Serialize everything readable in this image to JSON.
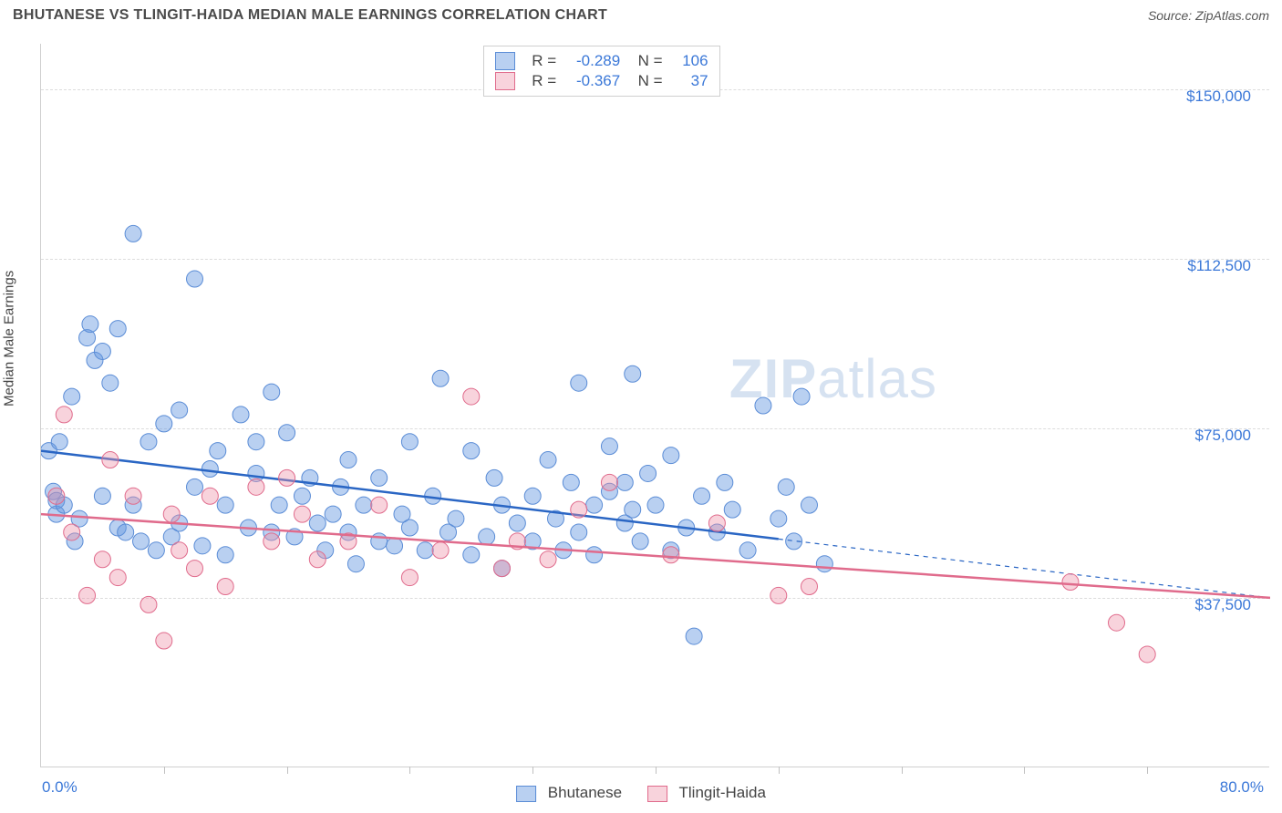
{
  "title": "BHUTANESE VS TLINGIT-HAIDA MEDIAN MALE EARNINGS CORRELATION CHART",
  "source_label": "Source: ZipAtlas.com",
  "ylabel": "Median Male Earnings",
  "xaxis": {
    "min_label": "0.0%",
    "max_label": "80.0%",
    "min": 0,
    "max": 80,
    "tick_interval_minor": 8,
    "tick_count": 10
  },
  "yaxis": {
    "min": 0,
    "max": 160000,
    "gridlines": [
      {
        "value": 37500,
        "label": "$37,500"
      },
      {
        "value": 75000,
        "label": "$75,000"
      },
      {
        "value": 112500,
        "label": "$112,500"
      },
      {
        "value": 150000,
        "label": "$150,000"
      }
    ]
  },
  "series": [
    {
      "id": "bhutanese",
      "label": "Bhutanese",
      "color_fill": "rgba(99,151,225,0.45)",
      "color_stroke": "#5a8cd6",
      "line_color": "#2a66c4",
      "R": "-0.289",
      "N": "106",
      "trend": {
        "x1": 0,
        "y1": 70000,
        "x2_solid": 48,
        "y2_solid": 50500,
        "x2_dash": 80,
        "y2_dash": 37500
      },
      "points": [
        [
          0.5,
          70000
        ],
        [
          0.8,
          61000
        ],
        [
          1,
          56000
        ],
        [
          1,
          59000
        ],
        [
          1.2,
          72000
        ],
        [
          1.5,
          58000
        ],
        [
          2,
          82000
        ],
        [
          2.2,
          50000
        ],
        [
          2.5,
          55000
        ],
        [
          3,
          95000
        ],
        [
          3.2,
          98000
        ],
        [
          3.5,
          90000
        ],
        [
          4,
          92000
        ],
        [
          4,
          60000
        ],
        [
          4.5,
          85000
        ],
        [
          5,
          97000
        ],
        [
          5,
          53000
        ],
        [
          5.5,
          52000
        ],
        [
          6,
          118000
        ],
        [
          6,
          58000
        ],
        [
          6.5,
          50000
        ],
        [
          7,
          72000
        ],
        [
          7.5,
          48000
        ],
        [
          8,
          76000
        ],
        [
          8.5,
          51000
        ],
        [
          9,
          54000
        ],
        [
          9,
          79000
        ],
        [
          10,
          108000
        ],
        [
          10,
          62000
        ],
        [
          10.5,
          49000
        ],
        [
          11,
          66000
        ],
        [
          11.5,
          70000
        ],
        [
          12,
          47000
        ],
        [
          12,
          58000
        ],
        [
          13,
          78000
        ],
        [
          13.5,
          53000
        ],
        [
          14,
          65000
        ],
        [
          14,
          72000
        ],
        [
          15,
          83000
        ],
        [
          15,
          52000
        ],
        [
          15.5,
          58000
        ],
        [
          16,
          74000
        ],
        [
          16.5,
          51000
        ],
        [
          17,
          60000
        ],
        [
          17.5,
          64000
        ],
        [
          18,
          54000
        ],
        [
          18.5,
          48000
        ],
        [
          19,
          56000
        ],
        [
          19.5,
          62000
        ],
        [
          20,
          52000
        ],
        [
          20,
          68000
        ],
        [
          20.5,
          45000
        ],
        [
          21,
          58000
        ],
        [
          22,
          50000
        ],
        [
          22,
          64000
        ],
        [
          23,
          49000
        ],
        [
          23.5,
          56000
        ],
        [
          24,
          53000
        ],
        [
          24,
          72000
        ],
        [
          25,
          48000
        ],
        [
          25.5,
          60000
        ],
        [
          26,
          86000
        ],
        [
          26.5,
          52000
        ],
        [
          27,
          55000
        ],
        [
          28,
          70000
        ],
        [
          28,
          47000
        ],
        [
          29,
          51000
        ],
        [
          29.5,
          64000
        ],
        [
          30,
          58000
        ],
        [
          30,
          44000
        ],
        [
          31,
          54000
        ],
        [
          32,
          60000
        ],
        [
          32,
          50000
        ],
        [
          33,
          68000
        ],
        [
          33.5,
          55000
        ],
        [
          34,
          48000
        ],
        [
          34.5,
          63000
        ],
        [
          35,
          85000
        ],
        [
          35,
          52000
        ],
        [
          36,
          47000
        ],
        [
          36,
          58000
        ],
        [
          37,
          61000
        ],
        [
          37,
          71000
        ],
        [
          38,
          54000
        ],
        [
          38,
          63000
        ],
        [
          38.5,
          87000
        ],
        [
          38.5,
          57000
        ],
        [
          39,
          50000
        ],
        [
          39.5,
          65000
        ],
        [
          40,
          58000
        ],
        [
          41,
          48000
        ],
        [
          41,
          69000
        ],
        [
          42,
          53000
        ],
        [
          42.5,
          29000
        ],
        [
          43,
          60000
        ],
        [
          44,
          52000
        ],
        [
          44.5,
          63000
        ],
        [
          45,
          57000
        ],
        [
          46,
          48000
        ],
        [
          47,
          80000
        ],
        [
          48,
          55000
        ],
        [
          48.5,
          62000
        ],
        [
          49,
          50000
        ],
        [
          49.5,
          82000
        ],
        [
          50,
          58000
        ],
        [
          51,
          45000
        ]
      ]
    },
    {
      "id": "tlingit",
      "label": "Tlingit-Haida",
      "color_fill": "rgba(238,145,167,0.40)",
      "color_stroke": "#e06b8c",
      "line_color": "#e06b8c",
      "R": "-0.367",
      "N": "37",
      "trend": {
        "x1": 0,
        "y1": 56000,
        "x2_solid": 80,
        "y2_solid": 37500,
        "x2_dash": 80,
        "y2_dash": 37500
      },
      "points": [
        [
          1,
          60000
        ],
        [
          1.5,
          78000
        ],
        [
          2,
          52000
        ],
        [
          3,
          38000
        ],
        [
          4,
          46000
        ],
        [
          4.5,
          68000
        ],
        [
          5,
          42000
        ],
        [
          6,
          60000
        ],
        [
          7,
          36000
        ],
        [
          8,
          28000
        ],
        [
          8.5,
          56000
        ],
        [
          9,
          48000
        ],
        [
          10,
          44000
        ],
        [
          11,
          60000
        ],
        [
          12,
          40000
        ],
        [
          14,
          62000
        ],
        [
          15,
          50000
        ],
        [
          16,
          64000
        ],
        [
          17,
          56000
        ],
        [
          18,
          46000
        ],
        [
          20,
          50000
        ],
        [
          22,
          58000
        ],
        [
          24,
          42000
        ],
        [
          26,
          48000
        ],
        [
          28,
          82000
        ],
        [
          30,
          44000
        ],
        [
          31,
          50000
        ],
        [
          33,
          46000
        ],
        [
          35,
          57000
        ],
        [
          37,
          63000
        ],
        [
          41,
          47000
        ],
        [
          44,
          54000
        ],
        [
          48,
          38000
        ],
        [
          50,
          40000
        ],
        [
          67,
          41000
        ],
        [
          70,
          32000
        ],
        [
          72,
          25000
        ]
      ]
    }
  ],
  "legend": [
    {
      "label": "Bhutanese",
      "fill": "rgba(99,151,225,0.45)",
      "stroke": "#5a8cd6"
    },
    {
      "label": "Tlingit-Haida",
      "fill": "rgba(238,145,167,0.40)",
      "stroke": "#e06b8c"
    }
  ],
  "watermark": {
    "text_bold": "ZIP",
    "text_light": "atlas",
    "color": "rgba(120,160,210,0.30)"
  },
  "chart_bg": "#ffffff",
  "marker_radius": 9,
  "line_width_solid": 2.5,
  "line_width_dash": 1.2,
  "stats_box_left_pct": 36
}
